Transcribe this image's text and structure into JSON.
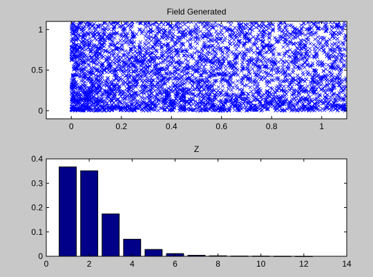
{
  "window": {
    "background": "#c8c8c8"
  },
  "chart_data": [
    {
      "type": "scatter",
      "title": "Field Generated",
      "xlabel": "",
      "ylabel": "",
      "xlim": [
        -0.1,
        1.1
      ],
      "ylim": [
        -0.1,
        1.1
      ],
      "x_ticks": [
        0,
        0.2,
        0.4,
        0.6,
        0.8,
        1
      ],
      "x_tick_labels": [
        "0",
        "0.2",
        "0.4",
        "0.6",
        "0.8",
        "1"
      ],
      "y_ticks": [
        0,
        0.5,
        1
      ],
      "y_tick_labels": [
        "0",
        "0.5",
        "1"
      ],
      "marker": "x",
      "marker_color": "#0000ff",
      "point_count": 4000,
      "x_range": [
        0,
        1.1
      ],
      "y_range": [
        0,
        1.1
      ],
      "density_note": "points dense near x=0 and y=0, sparser toward x=1.1",
      "grid": false
    },
    {
      "type": "bar",
      "title": "Z",
      "xlabel": "",
      "ylabel": "",
      "xlim": [
        0,
        14
      ],
      "ylim": [
        0,
        0.4
      ],
      "x_ticks": [
        0,
        2,
        4,
        6,
        8,
        10,
        12,
        14
      ],
      "x_tick_labels": [
        "0",
        "2",
        "4",
        "6",
        "8",
        "10",
        "12",
        "14"
      ],
      "y_ticks": [
        0,
        0.1,
        0.2,
        0.3,
        0.4
      ],
      "y_tick_labels": [
        "0",
        "0.1",
        "0.2",
        "0.3",
        "0.4"
      ],
      "categories": [
        1,
        2,
        3,
        4,
        5,
        6,
        7,
        8,
        9,
        10,
        11,
        12
      ],
      "values": [
        0.367,
        0.351,
        0.174,
        0.07,
        0.028,
        0.011,
        0.004,
        0.002,
        0.001,
        0.0008,
        0.0004,
        0.0002
      ],
      "bar_color": "#000088",
      "bar_width": 0.8,
      "grid": false
    }
  ]
}
